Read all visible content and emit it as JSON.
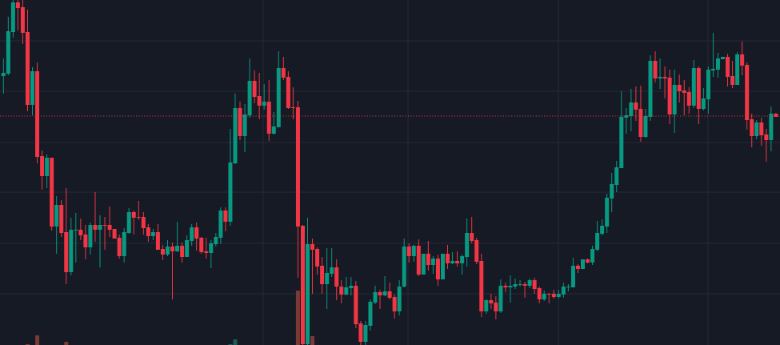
{
  "chart_data": {
    "type": "candlestick",
    "title": "",
    "xlabel": "",
    "ylabel": "",
    "ylim": [
      69,
      500
    ],
    "grid": true,
    "colors": {
      "background": "#161a25",
      "grid": "#252936",
      "up": "#089981",
      "down": "#f23645",
      "volume_up": "#1d5c5c",
      "volume_down": "#7a3a36",
      "last_price_line": "#f23645"
    },
    "last_price": 355,
    "ohlc_fields": [
      "open",
      "high",
      "low",
      "close"
    ],
    "candles": [
      [
        405,
        427,
        383,
        409
      ],
      [
        408,
        479,
        406,
        461
      ],
      [
        460,
        500,
        453,
        497
      ],
      [
        497,
        500,
        462,
        490
      ],
      [
        491,
        500,
        445,
        459
      ],
      [
        460,
        488,
        361,
        369
      ],
      [
        369,
        416,
        356,
        411
      ],
      [
        411,
        422,
        296,
        304
      ],
      [
        305,
        312,
        263,
        280
      ],
      [
        280,
        307,
        265,
        303
      ],
      [
        303,
        303,
        212,
        217
      ],
      [
        217,
        255,
        183,
        244
      ],
      [
        244,
        250,
        204,
        209
      ],
      [
        210,
        265,
        145,
        160
      ],
      [
        160,
        228,
        156,
        213
      ],
      [
        212,
        234,
        172,
        213
      ],
      [
        213,
        227,
        200,
        206
      ],
      [
        207,
        219,
        176,
        191
      ],
      [
        191,
        222,
        182,
        219
      ],
      [
        219,
        260,
        198,
        213
      ],
      [
        213,
        231,
        166,
        219
      ],
      [
        219,
        229,
        188,
        218
      ],
      [
        219,
        242,
        204,
        213
      ],
      [
        214,
        214,
        202,
        202
      ],
      [
        203,
        207,
        177,
        180
      ],
      [
        180,
        215,
        172,
        210
      ],
      [
        209,
        240,
        208,
        235
      ],
      [
        235,
        237,
        207,
        228
      ],
      [
        229,
        249,
        225,
        228
      ],
      [
        229,
        235,
        207,
        215
      ],
      [
        216,
        220,
        198,
        205
      ],
      [
        205,
        214,
        200,
        210
      ],
      [
        210,
        220,
        188,
        188
      ],
      [
        189,
        194,
        175,
        182
      ],
      [
        182,
        200,
        180,
        192
      ],
      [
        192,
        197,
        126,
        186
      ],
      [
        186,
        223,
        185,
        193
      ],
      [
        193,
        197,
        172,
        179
      ],
      [
        179,
        206,
        179,
        200
      ],
      [
        199,
        220,
        193,
        216
      ],
      [
        216,
        222,
        187,
        202
      ],
      [
        203,
        204,
        183,
        185
      ],
      [
        186,
        203,
        177,
        184
      ],
      [
        184,
        200,
        165,
        196
      ],
      [
        195,
        209,
        192,
        204
      ],
      [
        203,
        241,
        195,
        237
      ],
      [
        237,
        241,
        211,
        223
      ],
      [
        223,
        339,
        218,
        297
      ],
      [
        296,
        383,
        295,
        365
      ],
      [
        365,
        373,
        325,
        330
      ],
      [
        330,
        370,
        310,
        357
      ],
      [
        356,
        427,
        353,
        399
      ],
      [
        399,
        412,
        371,
        379
      ],
      [
        380,
        409,
        351,
        368
      ],
      [
        368,
        395,
        363,
        373
      ],
      [
        373,
        400,
        324,
        333
      ],
      [
        333,
        360,
        332,
        342
      ],
      [
        341,
        436,
        341,
        415
      ],
      [
        415,
        429,
        400,
        403
      ],
      [
        404,
        411,
        364,
        365
      ],
      [
        366,
        391,
        351,
        365
      ],
      [
        366,
        374,
        153,
        217
      ],
      [
        218,
        219,
        69,
        70
      ],
      [
        70,
        228,
        69,
        195
      ],
      [
        195,
        202,
        133,
        188
      ],
      [
        189,
        191,
        157,
        167
      ],
      [
        168,
        179,
        133,
        145
      ],
      [
        145,
        190,
        114,
        159
      ],
      [
        158,
        190,
        154,
        166
      ],
      [
        166,
        176,
        125,
        142
      ],
      [
        142,
        150,
        121,
        132
      ],
      [
        132,
        154,
        131,
        141
      ],
      [
        140,
        154,
        131,
        143
      ],
      [
        143,
        149,
        90,
        95
      ],
      [
        96,
        99,
        69,
        73
      ],
      [
        73,
        99,
        69,
        94
      ],
      [
        93,
        126,
        87,
        123
      ],
      [
        122,
        143,
        120,
        135
      ],
      [
        135,
        138,
        114,
        131
      ],
      [
        131,
        155,
        130,
        136
      ],
      [
        136,
        147,
        126,
        128
      ],
      [
        129,
        132,
        102,
        111
      ],
      [
        111,
        150,
        106,
        142
      ],
      [
        142,
        202,
        141,
        192
      ],
      [
        192,
        196,
        172,
        180
      ],
      [
        180,
        194,
        173,
        193
      ],
      [
        193,
        201,
        155,
        157
      ],
      [
        157,
        183,
        157,
        183
      ],
      [
        183,
        199,
        162,
        169
      ],
      [
        169,
        180,
        158,
        177
      ],
      [
        177,
        182,
        143,
        151
      ],
      [
        151,
        183,
        151,
        183
      ],
      [
        183,
        194,
        164,
        171
      ],
      [
        171,
        185,
        170,
        174
      ],
      [
        174,
        186,
        167,
        171
      ],
      [
        171,
        182,
        157,
        180
      ],
      [
        179,
        227,
        167,
        209
      ],
      [
        209,
        229,
        196,
        199
      ],
      [
        200,
        203,
        170,
        173
      ],
      [
        174,
        183,
        104,
        111
      ],
      [
        111,
        126,
        108,
        125
      ],
      [
        125,
        133,
        114,
        121
      ],
      [
        122,
        130,
        101,
        111
      ],
      [
        111,
        151,
        109,
        143
      ],
      [
        143,
        147,
        135,
        141
      ],
      [
        141,
        156,
        122,
        143
      ],
      [
        142,
        152,
        139,
        145
      ],
      [
        144,
        150,
        142,
        145
      ],
      [
        145,
        148,
        128,
        143
      ],
      [
        143,
        152,
        140,
        150
      ],
      [
        150,
        153,
        133,
        139
      ],
      [
        140,
        142,
        121,
        126
      ],
      [
        126,
        137,
        124,
        133
      ],
      [
        133,
        134,
        121,
        132
      ],
      [
        133,
        138,
        127,
        129
      ],
      [
        129,
        138,
        127,
        133
      ],
      [
        132,
        147,
        128,
        142
      ],
      [
        141,
        145,
        136,
        142
      ],
      [
        141,
        178,
        141,
        168
      ],
      [
        168,
        170,
        159,
        164
      ],
      [
        164,
        176,
        164,
        176
      ],
      [
        176,
        177,
        171,
        172
      ],
      [
        172,
        193,
        169,
        189
      ],
      [
        188,
        224,
        186,
        209
      ],
      [
        208,
        226,
        206,
        218
      ],
      [
        217,
        258,
        209,
        253
      ],
      [
        252,
        284,
        235,
        270
      ],
      [
        269,
        299,
        260,
        291
      ],
      [
        290,
        386,
        290,
        354
      ],
      [
        353,
        365,
        333,
        356
      ],
      [
        355,
        389,
        336,
        372
      ],
      [
        372,
        392,
        349,
        363
      ],
      [
        364,
        393,
        323,
        329
      ],
      [
        329,
        364,
        328,
        355
      ],
      [
        354,
        431,
        349,
        424
      ],
      [
        424,
        436,
        397,
        402
      ],
      [
        402,
        427,
        389,
        404
      ],
      [
        404,
        417,
        377,
        402
      ],
      [
        403,
        413,
        345,
        357
      ],
      [
        357,
        413,
        334,
        394
      ],
      [
        394,
        407,
        372,
        386
      ],
      [
        387,
        400,
        356,
        384
      ],
      [
        385,
        391,
        358,
        368
      ],
      [
        368,
        425,
        365,
        415
      ],
      [
        415,
        417,
        345,
        364
      ],
      [
        364,
        390,
        362,
        377
      ],
      [
        376,
        417,
        358,
        413
      ],
      [
        412,
        459,
        404,
        414
      ],
      [
        413,
        434,
        403,
        427
      ],
      [
        426,
        429,
        426,
        429
      ],
      [
        429,
        433,
        392,
        404
      ],
      [
        405,
        424,
        390,
        394
      ],
      [
        394,
        435,
        394,
        432
      ],
      [
        432,
        448,
        406,
        418
      ],
      [
        419,
        422,
        338,
        350
      ],
      [
        351,
        358,
        316,
        330
      ],
      [
        330,
        350,
        326,
        347
      ],
      [
        347,
        353,
        318,
        331
      ],
      [
        332,
        339,
        298,
        325
      ],
      [
        325,
        367,
        311,
        358
      ],
      [
        358,
        359,
        354,
        354
      ]
    ],
    "volume": [
      {
        "index": 5,
        "value": 1,
        "up": false
      },
      {
        "index": 7,
        "value": 12,
        "up": false
      },
      {
        "index": 13,
        "value": 4,
        "up": false
      },
      {
        "index": 47,
        "value": 1,
        "up": true
      },
      {
        "index": 48,
        "value": 7,
        "up": true
      },
      {
        "index": 61,
        "value": 68,
        "up": false
      },
      {
        "index": 64,
        "value": 11,
        "up": false
      }
    ]
  }
}
